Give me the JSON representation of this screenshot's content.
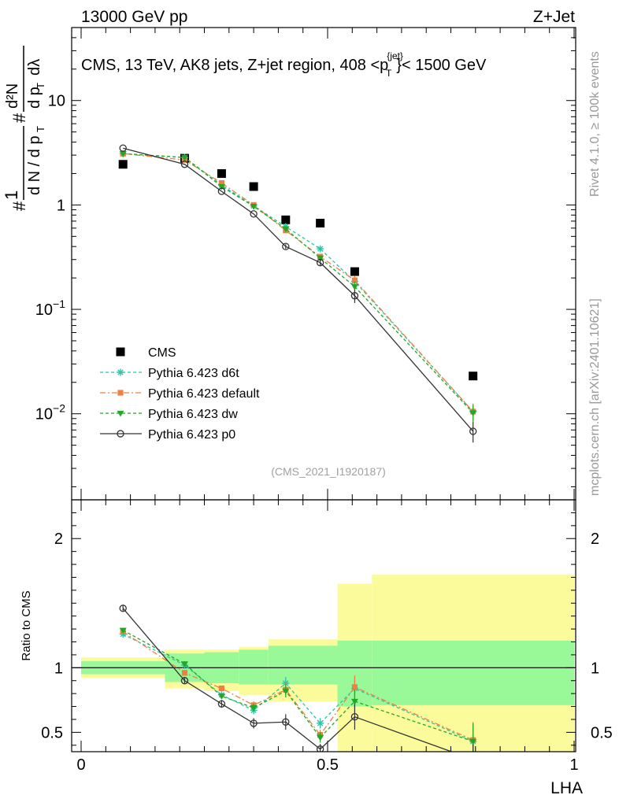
{
  "header": {
    "left": "13000 GeV pp",
    "right": "Z+Jet"
  },
  "side_labels": {
    "rivet": "Rivet 4.1.0, ≥ 100k events",
    "mcplots": "mcplots.cern.ch [arXiv:2401.10621]"
  },
  "chart_data": {
    "type": "line",
    "title": "CMS, 13 TeV, AK8 jets, Z+jet region, 408 <p_T^{jet}< 1500 GeV",
    "title_parts": {
      "prefix": "CMS, 13 TeV, AK8 jets, Z+jet region, 408 <p",
      "sup": "{jet}",
      "sub": "T",
      "suffix": "}< 1500 GeV"
    },
    "analysis_tag": "(CMS_2021_I1920187)",
    "xlabel": "LHA",
    "ylabel": "# 1/(dN/dp_T) # d²N/(dp_T dλ)",
    "ylabel_parts": {
      "hash": "#",
      "one": "1",
      "dn": "d N / d p",
      "sub_t": "T",
      "d2n": "d²N",
      "dpdl": "d p",
      "lambda": "dλ"
    },
    "xlim": [
      0,
      1
    ],
    "ylim": [
      0.0015,
      50
    ],
    "yscale": "log",
    "x_ticks": [
      0,
      0.5,
      1
    ],
    "x_tick_labels": [
      "0",
      "0.5",
      "1"
    ],
    "y_ticks": [
      0.01,
      0.1,
      1,
      10
    ],
    "y_tick_labels": [
      {
        "base": "10",
        "exp": "−2"
      },
      {
        "base": "10",
        "exp": "−1"
      },
      {
        "base": "1",
        "exp": ""
      },
      {
        "base": "10",
        "exp": ""
      }
    ],
    "legend_position": "lower-left",
    "series": [
      {
        "name": "CMS",
        "marker": "square",
        "color": "#000000",
        "dash": "none",
        "line": false,
        "x": [
          0.085,
          0.21,
          0.285,
          0.35,
          0.415,
          0.485,
          0.555,
          0.795
        ],
        "y": [
          2.45,
          2.8,
          2.0,
          1.5,
          0.72,
          0.67,
          0.23,
          0.023
        ],
        "err": [
          0,
          0,
          0,
          0,
          0,
          0,
          0,
          0
        ]
      },
      {
        "name": "Pythia 6.423 d6t",
        "marker": "star",
        "color": "#2ec4a6",
        "dash": "4,3",
        "line": true,
        "x": [
          0.085,
          0.21,
          0.285,
          0.35,
          0.415,
          0.485,
          0.555,
          0.795
        ],
        "y": [
          3.1,
          2.85,
          1.55,
          0.98,
          0.62,
          0.38,
          0.185,
          0.0105
        ],
        "err": [
          0,
          0,
          0,
          0,
          0.03,
          0.02,
          0.02,
          0.002
        ]
      },
      {
        "name": "Pythia 6.423 default",
        "marker": "square-small",
        "color": "#f08040",
        "dash": "7,3,2,3",
        "line": true,
        "x": [
          0.085,
          0.21,
          0.285,
          0.35,
          0.415,
          0.485,
          0.555,
          0.795
        ],
        "y": [
          3.1,
          2.7,
          1.62,
          1.0,
          0.57,
          0.32,
          0.19,
          0.0105
        ],
        "err": [
          0,
          0,
          0,
          0,
          0.03,
          0.02,
          0.02,
          0.002
        ]
      },
      {
        "name": "Pythia 6.423 dw",
        "marker": "triangle-down",
        "color": "#22a822",
        "dash": "4,3",
        "line": true,
        "x": [
          0.085,
          0.21,
          0.285,
          0.35,
          0.415,
          0.485,
          0.555,
          0.795
        ],
        "y": [
          3.1,
          2.85,
          1.5,
          0.97,
          0.59,
          0.31,
          0.165,
          0.0102
        ],
        "err": [
          0,
          0,
          0,
          0,
          0.03,
          0.02,
          0.02,
          0.002
        ]
      },
      {
        "name": "Pythia 6.423 p0",
        "marker": "circle-open",
        "color": "#333333",
        "dash": "none",
        "line": true,
        "x": [
          0.085,
          0.21,
          0.285,
          0.35,
          0.415,
          0.485,
          0.555,
          0.795
        ],
        "y": [
          3.5,
          2.45,
          1.35,
          0.82,
          0.4,
          0.28,
          0.135,
          0.0068
        ],
        "err": [
          0,
          0,
          0,
          0,
          0.02,
          0.02,
          0.02,
          0.0015
        ]
      }
    ],
    "ratio": {
      "ylabel": "Ratio to CMS",
      "ylim": [
        0.35,
        2.3
      ],
      "y_ticks": [
        0.5,
        1,
        2
      ],
      "y_tick_labels": [
        "0.5",
        "1",
        "2"
      ],
      "bands": [
        {
          "x0": 0.0,
          "x1": 0.17,
          "green": [
            0.95,
            1.05
          ],
          "yellow": [
            0.92,
            1.08
          ]
        },
        {
          "x0": 0.17,
          "x1": 0.25,
          "green": [
            0.89,
            1.11
          ],
          "yellow": [
            0.84,
            1.14
          ]
        },
        {
          "x0": 0.25,
          "x1": 0.32,
          "green": [
            0.88,
            1.12
          ],
          "yellow": [
            0.82,
            1.14
          ]
        },
        {
          "x0": 0.32,
          "x1": 0.38,
          "green": [
            0.87,
            1.14
          ],
          "yellow": [
            0.79,
            1.16
          ]
        },
        {
          "x0": 0.38,
          "x1": 0.52,
          "green": [
            0.87,
            1.17
          ],
          "yellow": [
            0.74,
            1.22
          ]
        },
        {
          "x0": 0.52,
          "x1": 0.59,
          "green": [
            0.7,
            1.21
          ],
          "yellow": [
            0.35,
            1.65
          ]
        },
        {
          "x0": 0.59,
          "x1": 1.0,
          "green": [
            0.71,
            1.21
          ],
          "yellow": [
            0.35,
            1.72
          ]
        }
      ],
      "series": [
        {
          "name": "Pythia 6.423 d6t",
          "y": [
            1.26,
            1.02,
            0.79,
            0.67,
            0.88,
            0.57,
            0.84,
            0.43
          ],
          "err": [
            0.02,
            0.02,
            0.02,
            0.03,
            0.05,
            0.04,
            0.09,
            0.14
          ]
        },
        {
          "name": "Pythia 6.423 default",
          "y": [
            1.28,
            0.96,
            0.84,
            0.71,
            0.83,
            0.48,
            0.85,
            0.44
          ],
          "err": [
            0.02,
            0.02,
            0.02,
            0.03,
            0.05,
            0.04,
            0.09,
            0.14
          ]
        },
        {
          "name": "Pythia 6.423 dw",
          "y": [
            1.29,
            1.03,
            0.78,
            0.69,
            0.82,
            0.46,
            0.74,
            0.43
          ],
          "err": [
            0.02,
            0.02,
            0.02,
            0.03,
            0.05,
            0.04,
            0.09,
            0.14
          ]
        },
        {
          "name": "Pythia 6.423 p0",
          "y": [
            1.46,
            0.9,
            0.72,
            0.57,
            0.58,
            0.37,
            0.62,
            0.29
          ],
          "err": [
            0.02,
            0.02,
            0.03,
            0.04,
            0.06,
            0.04,
            0.1,
            0.12
          ]
        }
      ]
    },
    "colors": {
      "green_band": "#99f999",
      "yellow_band": "#fbfb9c"
    }
  }
}
